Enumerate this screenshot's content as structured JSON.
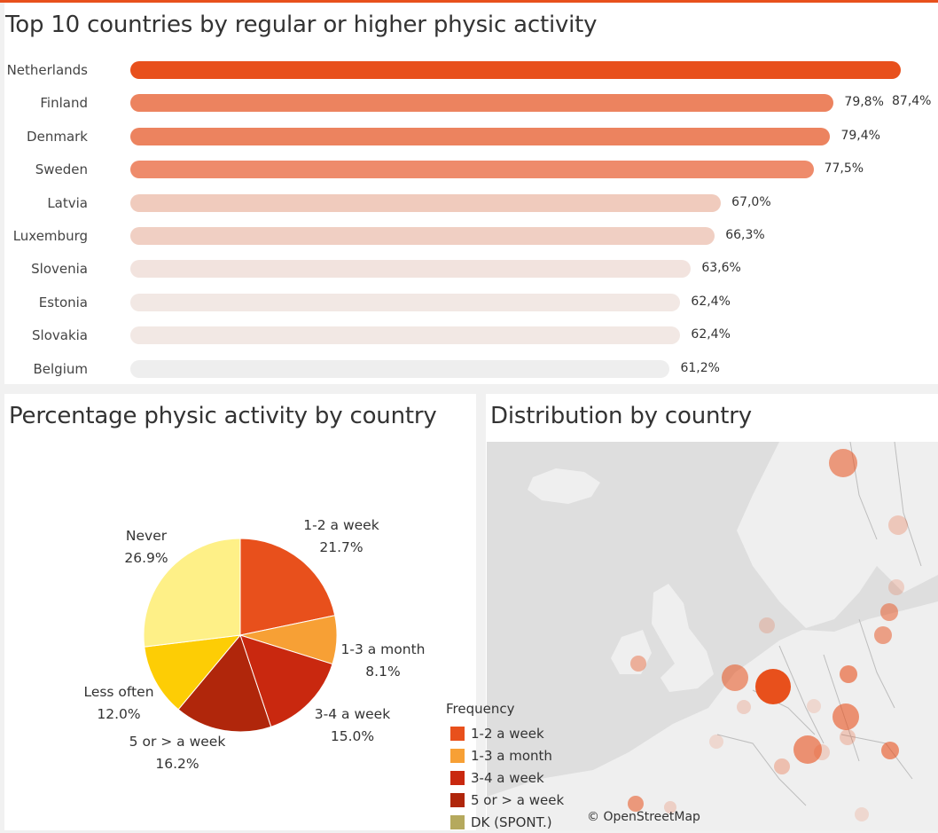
{
  "bar_section": {
    "title": "Top 10 countries by regular or higher physic activity"
  },
  "pie_section": {
    "title": "Percentage physic activity by country"
  },
  "map_section": {
    "title": "Distribution by country",
    "credit": "© OpenStreetMap"
  },
  "legend": {
    "title": "Frequency",
    "items": [
      {
        "label": "1-2 a week",
        "color": "#e8501c"
      },
      {
        "label": "1-3 a month",
        "color": "#f7a035"
      },
      {
        "label": "3-4 a week",
        "color": "#c9280f"
      },
      {
        "label": "5 or > a week",
        "color": "#b0260b"
      },
      {
        "label": "DK (SPONT.)",
        "color": "#b5a95d"
      }
    ]
  },
  "chart_data": [
    {
      "type": "bar",
      "orientation": "horizontal",
      "title": "Top 10 countries by regular or higher physic activity",
      "categories": [
        "Netherlands",
        "Finland",
        "Denmark",
        "Sweden",
        "Latvia",
        "Luxemburg",
        "Slovenia",
        "Estonia",
        "Slovakia",
        "Belgium"
      ],
      "values": [
        87.4,
        79.8,
        79.4,
        77.5,
        67.0,
        66.3,
        63.6,
        62.4,
        62.4,
        61.2
      ],
      "value_labels": [
        "87,4%",
        "79,8%",
        "79,4%",
        "77,5%",
        "67,0%",
        "66,3%",
        "63,6%",
        "62,4%",
        "62,4%",
        "61,2%"
      ],
      "bar_colors": [
        "#e8501c",
        "#ec835f",
        "#ec835f",
        "#ee8b6b",
        "#f0cbbd",
        "#f0cfc3",
        "#f2e3de",
        "#f2e8e4",
        "#f2e8e4",
        "#eeeeee"
      ],
      "xlim": [
        0,
        100
      ]
    },
    {
      "type": "pie",
      "title": "Percentage physic activity by country",
      "slices": [
        {
          "label": "1-2 a week",
          "value": 21.7,
          "value_label": "21.7%",
          "color": "#e8501c"
        },
        {
          "label": "1-3 a month",
          "value": 8.1,
          "value_label": "8.1%",
          "color": "#f7a035"
        },
        {
          "label": "3-4 a week",
          "value": 15.0,
          "value_label": "15.0%",
          "color": "#c9280f"
        },
        {
          "label": "5 or > a week",
          "value": 16.2,
          "value_label": "16.2%",
          "color": "#b0260b"
        },
        {
          "label": "Less often",
          "value": 12.0,
          "value_label": "12.0%",
          "color": "#fdcd05"
        },
        {
          "label": "Never",
          "value": 26.9,
          "value_label": "26.9%",
          "color": "#fef087"
        }
      ]
    }
  ]
}
